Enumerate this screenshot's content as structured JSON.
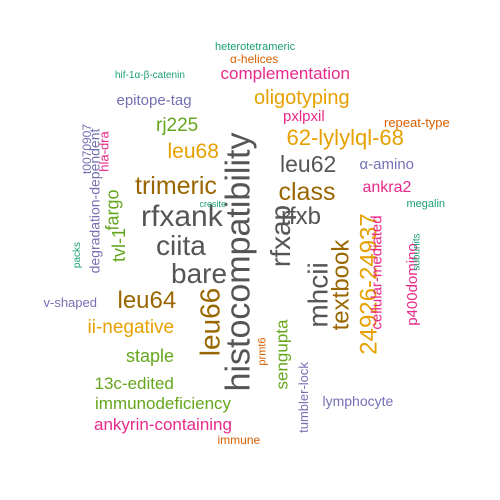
{
  "word_cloud": {
    "words": [
      {
        "text": "histocompatibility",
        "color": "#555555"
      },
      {
        "text": "rfxank",
        "color": "#555555"
      },
      {
        "text": "ciita",
        "color": "#555555"
      },
      {
        "text": "bare",
        "color": "#555555"
      },
      {
        "text": "rfxap",
        "color": "#555555"
      },
      {
        "text": "mhcii",
        "color": "#555555"
      },
      {
        "text": "rfxb",
        "color": "#555555"
      },
      {
        "text": "leu62",
        "color": "#555555"
      },
      {
        "text": "leu64",
        "color": "#996600"
      },
      {
        "text": "leu66",
        "color": "#996600"
      },
      {
        "text": "trimeric",
        "color": "#996600"
      },
      {
        "text": "class",
        "color": "#996600"
      },
      {
        "text": "textbook",
        "color": "#996600"
      },
      {
        "text": "24926-24937",
        "color": "#e6a100"
      },
      {
        "text": "62-lylylql-68",
        "color": "#e6a100"
      },
      {
        "text": "oligotyping",
        "color": "#e6a100"
      },
      {
        "text": "leu68",
        "color": "#e6a100"
      },
      {
        "text": "ii-negative",
        "color": "#e6a100"
      },
      {
        "text": "sengupta",
        "color": "#66a61e"
      },
      {
        "text": "rj225",
        "color": "#66a61e"
      },
      {
        "text": "fargo",
        "color": "#66a61e"
      },
      {
        "text": "tvl-1",
        "color": "#66a61e"
      },
      {
        "text": "staple",
        "color": "#66a61e"
      },
      {
        "text": "13c-edited",
        "color": "#66a61e"
      },
      {
        "text": "immunodeficiency",
        "color": "#66a61e"
      },
      {
        "text": "complementation",
        "color": "#e7298a"
      },
      {
        "text": "ankyrin-containing",
        "color": "#e7298a"
      },
      {
        "text": "ankra2",
        "color": "#e7298a"
      },
      {
        "text": "cellular-mediated",
        "color": "#e7298a"
      },
      {
        "text": "p400domino",
        "color": "#e7298a"
      },
      {
        "text": "pxlpxil",
        "color": "#e7298a"
      },
      {
        "text": "hla-dra",
        "color": "#e7298a"
      },
      {
        "text": "epitope-tag",
        "color": "#7570b3"
      },
      {
        "text": "degradation-dependent",
        "color": "#7570b3"
      },
      {
        "text": "α-amino",
        "color": "#7570b3"
      },
      {
        "text": "lymphocyte",
        "color": "#7570b3"
      },
      {
        "text": "tumbler-lock",
        "color": "#7570b3"
      },
      {
        "text": "v-shaped",
        "color": "#7570b3"
      },
      {
        "text": "t0070907",
        "color": "#7570b3"
      },
      {
        "text": "repeat-type",
        "color": "#d95f02"
      },
      {
        "text": "α-helices",
        "color": "#d95f02"
      },
      {
        "text": "immune",
        "color": "#d95f02"
      },
      {
        "text": "prmt6",
        "color": "#d95f02"
      },
      {
        "text": "heterotetrameric",
        "color": "#1b9e77"
      },
      {
        "text": "hif-1α-β-catenin",
        "color": "#1b9e77"
      },
      {
        "text": "megalin",
        "color": "#1b9e77"
      },
      {
        "text": "subunits",
        "color": "#1b9e77"
      },
      {
        "text": "cresite",
        "color": "#1b9e77"
      },
      {
        "text": "packs",
        "color": "#1b9e77"
      }
    ]
  }
}
